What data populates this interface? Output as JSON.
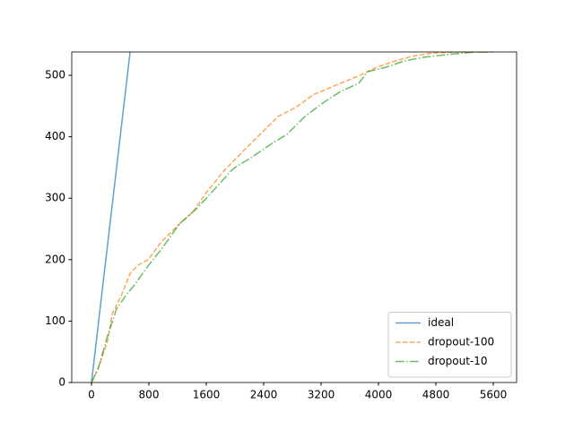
{
  "chart_data": {
    "type": "line",
    "series": [
      {
        "name": "ideal",
        "color": "#1f77b4",
        "linestyle": "solid",
        "x": [
          0,
          538
        ],
        "values": [
          0,
          538
        ]
      },
      {
        "name": "dropout-100",
        "color": "#ff7f0e",
        "linestyle": "dashed",
        "x": [
          0,
          100,
          225,
          290,
          410,
          540,
          660,
          790,
          975,
          1225,
          1410,
          1600,
          1850,
          2100,
          2350,
          2600,
          2850,
          3100,
          3410,
          3725,
          3975,
          4225,
          4475,
          4725,
          5100,
          5600
        ],
        "values": [
          0,
          25,
          68,
          112,
          140,
          178,
          192,
          200,
          229,
          258,
          277,
          309,
          345,
          375,
          404,
          433,
          448,
          469,
          484,
          499,
          513,
          523,
          531,
          536,
          538,
          538
        ]
      },
      {
        "name": "dropout-10",
        "color": "#2ca02c",
        "linestyle": "dashdot",
        "x": [
          0,
          100,
          225,
          350,
          475,
          600,
          790,
          975,
          1225,
          1475,
          1725,
          1975,
          2225,
          2475,
          2725,
          2975,
          3225,
          3475,
          3725,
          3850,
          4100,
          4350,
          4600,
          4975,
          5350,
          5600
        ],
        "values": [
          0,
          25,
          76,
          120,
          141,
          159,
          190,
          217,
          258,
          284,
          316,
          348,
          366,
          386,
          404,
          433,
          455,
          474,
          487,
          506,
          513,
          523,
          529,
          534,
          538,
          538
        ]
      }
    ],
    "xlim": [
      -275,
      5925
    ],
    "ylim": [
      0,
      538
    ],
    "xticks": [
      0,
      800,
      1600,
      2400,
      3200,
      4000,
      4800,
      5600
    ],
    "yticks": [
      0,
      100,
      200,
      300,
      400,
      500
    ],
    "legend": "lower right"
  }
}
